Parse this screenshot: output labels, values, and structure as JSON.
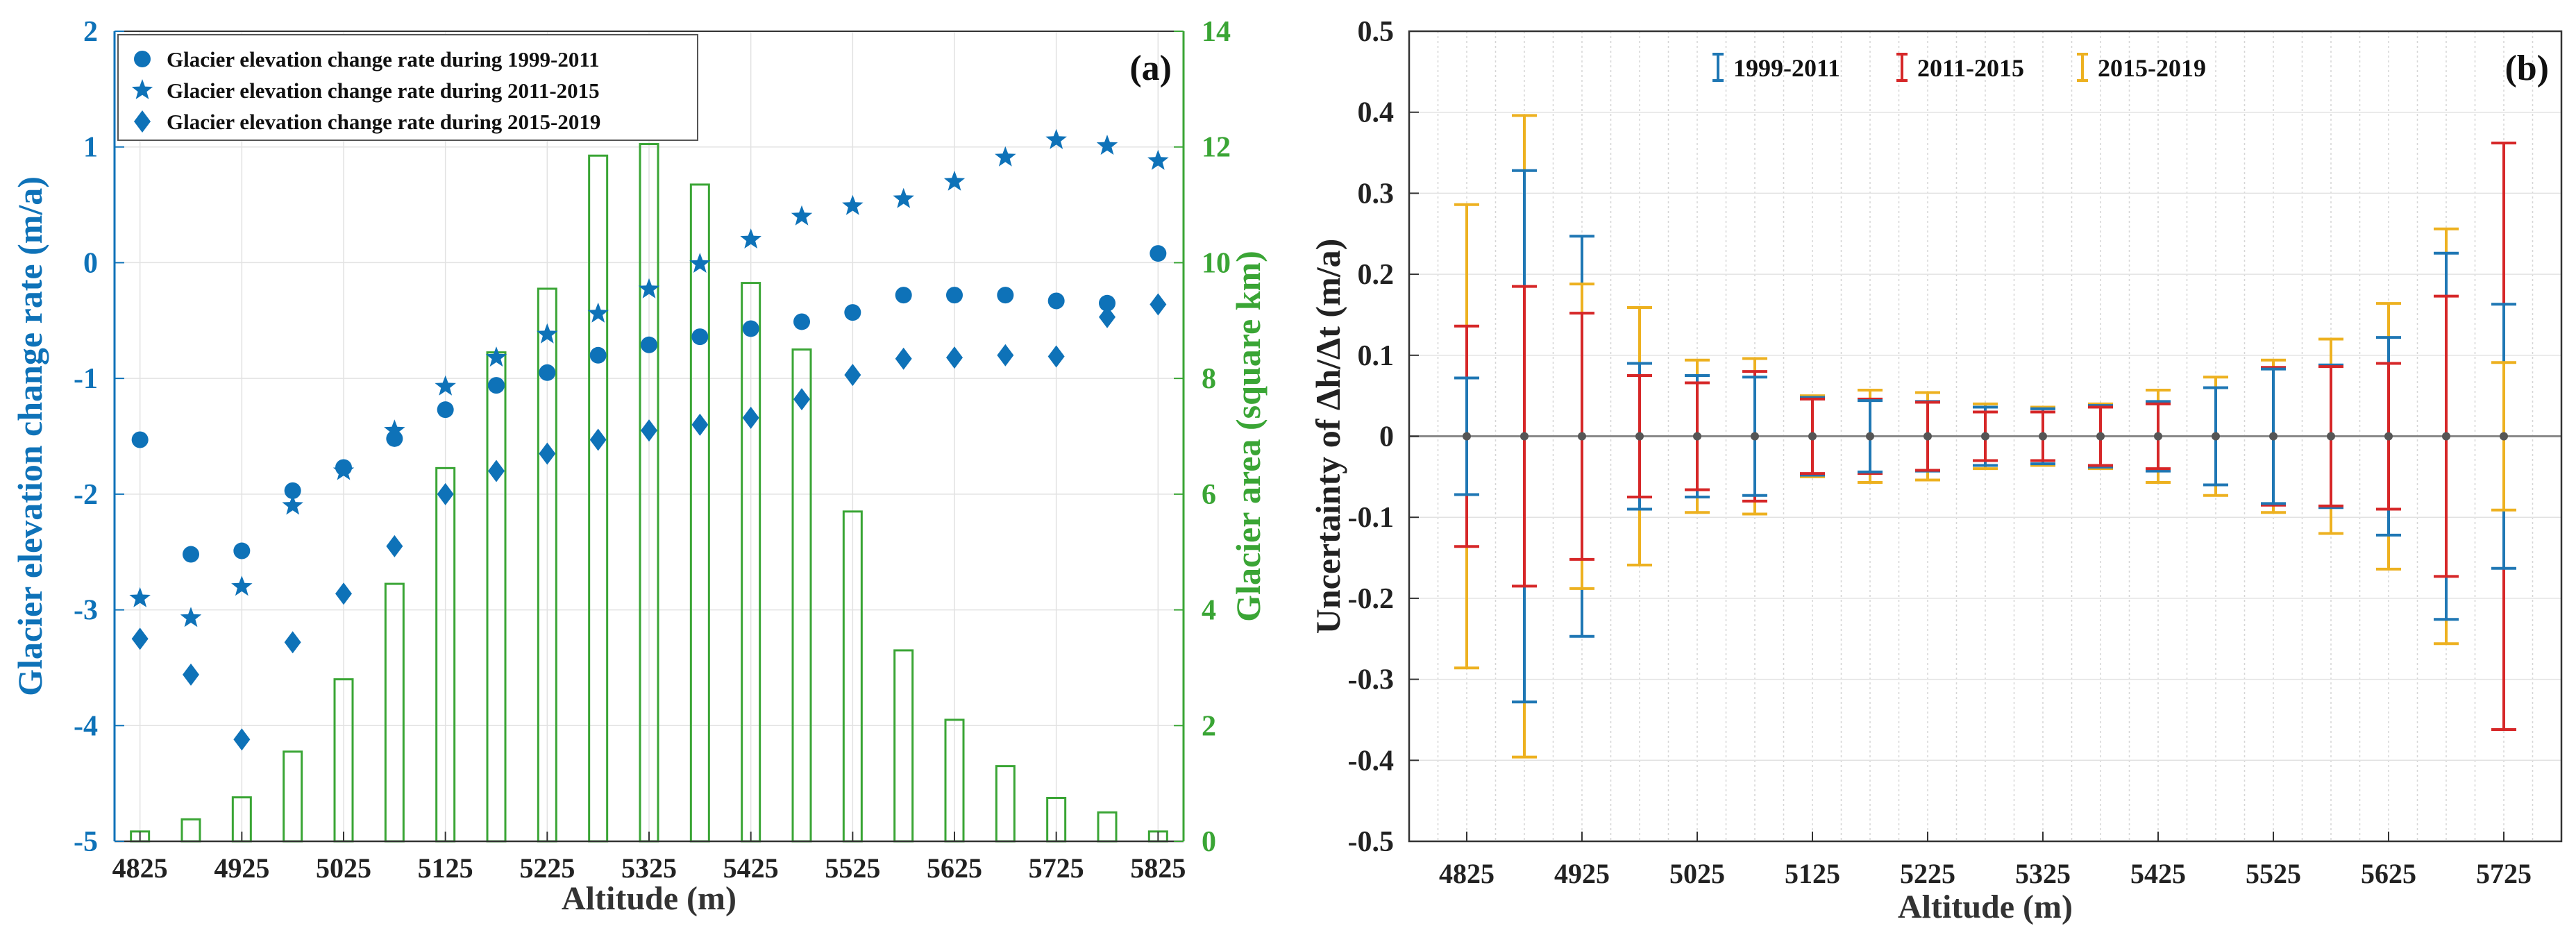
{
  "chart_data": [
    {
      "type": "scatter+bar",
      "panel_label": "(a)",
      "xlabel": "Altitude (m)",
      "ylabel_left": "Glacier elevation change rate (m/a)",
      "ylabel_right": "Glacier area (square km)",
      "x": [
        4825,
        4875,
        4925,
        4975,
        5025,
        5075,
        5125,
        5175,
        5225,
        5275,
        5325,
        5375,
        5425,
        5475,
        5525,
        5575,
        5625,
        5675,
        5725,
        5775,
        5825
      ],
      "xlim": [
        4800,
        5850
      ],
      "xticks": [
        4825,
        4925,
        5025,
        5125,
        5225,
        5325,
        5425,
        5525,
        5625,
        5725,
        5825
      ],
      "ylim_left": [
        -5,
        2
      ],
      "yticks_left": [
        -5,
        -4,
        -3,
        -2,
        -1,
        0,
        1,
        2
      ],
      "ylim_right": [
        0,
        14
      ],
      "yticks_right": [
        0,
        2,
        4,
        6,
        8,
        10,
        12,
        14
      ],
      "legend": [
        {
          "marker": "circle",
          "label": "Glacier elevation change rate during 1999-2011"
        },
        {
          "marker": "star",
          "label": "Glacier elevation change rate during 2011-2015"
        },
        {
          "marker": "diamond",
          "label": "Glacier elevation change rate during 2015-2019"
        }
      ],
      "series": [
        {
          "name": "1999-2011",
          "marker": "circle",
          "values": [
            -1.53,
            -2.52,
            -2.49,
            -1.97,
            -1.77,
            -1.52,
            -1.27,
            -1.06,
            -0.95,
            -0.8,
            -0.71,
            -0.64,
            -0.57,
            -0.51,
            -0.43,
            -0.28,
            -0.28,
            -0.28,
            -0.33,
            -0.35,
            0.08
          ]
        },
        {
          "name": "2011-2015",
          "marker": "star",
          "values": [
            -2.9,
            -3.07,
            -2.8,
            -2.1,
            -1.8,
            -1.45,
            -1.07,
            -0.82,
            -0.62,
            -0.44,
            -0.23,
            -0.01,
            0.2,
            0.4,
            0.49,
            0.55,
            0.7,
            0.91,
            1.06,
            1.01,
            0.88
          ]
        },
        {
          "name": "2015-2019",
          "marker": "diamond",
          "values": [
            -3.25,
            -3.56,
            -4.12,
            -3.28,
            -2.86,
            -2.45,
            -2.0,
            -1.8,
            -1.65,
            -1.53,
            -1.45,
            -1.4,
            -1.34,
            -1.18,
            -0.97,
            -0.83,
            -0.82,
            -0.8,
            -0.81,
            -0.47,
            -0.36
          ]
        },
        {
          "name": "Glacier area",
          "type": "bar",
          "axis": "right",
          "values": [
            0.17,
            0.38,
            0.76,
            1.55,
            2.8,
            4.45,
            6.45,
            8.45,
            9.55,
            11.85,
            12.05,
            11.35,
            9.65,
            8.5,
            5.7,
            3.3,
            2.1,
            1.3,
            0.75,
            0.5,
            0.17
          ]
        }
      ]
    },
    {
      "type": "errorbar",
      "panel_label": "(b)",
      "xlabel": "Altitude (m)",
      "ylabel": "Uncertainty of Δh/Δt (m/a)",
      "x": [
        4825,
        4875,
        4925,
        4975,
        5025,
        5075,
        5125,
        5175,
        5225,
        5275,
        5325,
        5375,
        5425,
        5475,
        5525,
        5575,
        5625,
        5675,
        5725
      ],
      "xlim": [
        4775,
        5775
      ],
      "xticks": [
        4825,
        4925,
        5025,
        5125,
        5225,
        5325,
        5425,
        5525,
        5625,
        5725
      ],
      "ylim": [
        -0.5,
        0.5
      ],
      "yticks": [
        -0.5,
        -0.4,
        -0.3,
        -0.2,
        -0.1,
        0,
        0.1,
        0.2,
        0.3,
        0.4,
        0.5
      ],
      "legend": [
        "1999-2011",
        "2011-2015",
        "2015-2019"
      ],
      "series": [
        {
          "name": "1999-2011",
          "color": "#1f77b4",
          "values": [
            0.072,
            0.328,
            0.247,
            0.09,
            0.075,
            0.073,
            0.048,
            0.044,
            0.043,
            0.036,
            0.034,
            0.038,
            0.043,
            0.06,
            0.083,
            0.088,
            0.122,
            0.226,
            0.163
          ]
        },
        {
          "name": "2011-2015",
          "color": "#d62728",
          "values": [
            0.136,
            0.185,
            0.152,
            0.075,
            0.066,
            0.08,
            0.046,
            0.046,
            0.042,
            0.03,
            0.03,
            0.036,
            0.04,
            0.06,
            0.085,
            0.086,
            0.09,
            0.173,
            0.362
          ]
        },
        {
          "name": "2015-2019",
          "color": "#edb120",
          "values": [
            0.286,
            0.396,
            0.188,
            0.159,
            0.094,
            0.096,
            0.05,
            0.057,
            0.054,
            0.04,
            0.036,
            0.04,
            0.057,
            0.073,
            0.094,
            0.12,
            0.164,
            0.256,
            0.091
          ]
        }
      ]
    }
  ]
}
